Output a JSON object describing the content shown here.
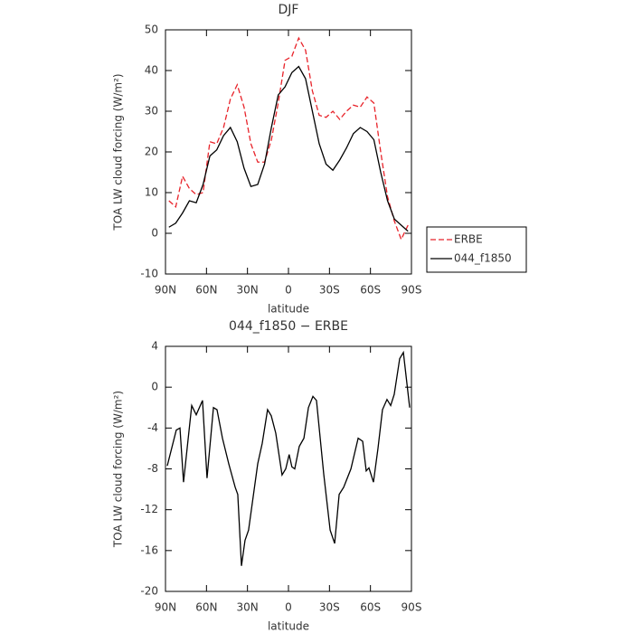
{
  "chart_data": [
    {
      "type": "line",
      "title": "DJF",
      "x_label": "latitude",
      "y_label": "TOA LW cloud forcing (W/m²)",
      "x": [
        87.5,
        82.5,
        77.5,
        72.5,
        67.5,
        62.5,
        57.5,
        52.5,
        47.5,
        42.5,
        37.5,
        32.5,
        27.5,
        22.5,
        17.5,
        12.5,
        7.5,
        2.5,
        -2.5,
        -7.5,
        -12.5,
        -17.5,
        -22.5,
        -27.5,
        -32.5,
        -37.5,
        -42.5,
        -47.5,
        -52.5,
        -57.5,
        -62.5,
        -67.5,
        -72.5,
        -77.5,
        -82.5,
        -87.5
      ],
      "series": [
        {
          "name": "ERBE",
          "color": "#e8232a",
          "dash": true,
          "values": [
            8,
            6.5,
            14,
            11,
            9.5,
            10,
            22.5,
            22,
            26,
            33,
            36.5,
            31,
            22,
            17.5,
            17.5,
            23,
            32,
            42.5,
            43.5,
            48,
            45,
            35,
            29,
            28.5,
            30,
            28,
            30,
            31.5,
            31,
            33.5,
            32,
            20,
            9,
            3,
            -1.5,
            2
          ]
        },
        {
          "name": "044_f1850",
          "color": "#000000",
          "dash": false,
          "values": [
            1.5,
            2.5,
            5,
            8,
            7.5,
            12,
            19,
            20.5,
            24,
            26,
            22.5,
            16,
            11.5,
            12,
            17,
            26,
            34,
            36,
            39.5,
            41,
            38,
            30,
            22,
            17,
            15.5,
            18,
            21,
            24.5,
            26,
            25,
            23,
            15,
            8,
            3.5,
            2,
            0.5
          ]
        }
      ],
      "xlim": [
        90,
        -90
      ],
      "xticks": [
        {
          "value": 90,
          "label": "90N"
        },
        {
          "value": 60,
          "label": "60N"
        },
        {
          "value": 30,
          "label": "30N"
        },
        0,
        {
          "value": -30,
          "label": "30S"
        },
        {
          "value": -60,
          "label": "60S"
        },
        {
          "value": -90,
          "label": "90S"
        }
      ],
      "ylim": [
        -10,
        50
      ],
      "yticks": [
        -10,
        0,
        10,
        20,
        30,
        40,
        50
      ],
      "legend": "right"
    },
    {
      "type": "line",
      "title": "044_f1850 − ERBE",
      "x_label": "latitude",
      "y_label": "TOA LW cloud forcing (W/m²)",
      "x": [
        88.7,
        82.1,
        79.4,
        76.8,
        70.8,
        67.5,
        62.9,
        59.6,
        54.9,
        52.3,
        48.3,
        43.7,
        39.0,
        37.1,
        34.4,
        31.8,
        29.2,
        22.5,
        19.2,
        15.3,
        12.6,
        9.3,
        4.7,
        2.0,
        -0.5,
        -2.5,
        -4.6,
        -7.9,
        -11.3,
        -14.6,
        -17.9,
        -20.5,
        -25.8,
        -30.5,
        -33.8,
        -37.1,
        -40.4,
        -45.7,
        -51.0,
        -54.3,
        -56.9,
        -58.9,
        -62.2,
        -65.5,
        -68.8,
        -72.1,
        -74.8,
        -77.4,
        -81.4,
        -84.1,
        -88.7
      ],
      "series": [
        {
          "color": "#000000",
          "dash": false,
          "values": [
            -7.7,
            -4.2,
            -4,
            -9.3,
            -1.8,
            -2.7,
            -1.3,
            -8.9,
            -2,
            -2.2,
            -5,
            -7.5,
            -9.8,
            -10.5,
            -17.5,
            -15,
            -14,
            -7.5,
            -5.5,
            -2.2,
            -2.8,
            -4.5,
            -8.6,
            -8,
            -6.6,
            -7.8,
            -8,
            -5.8,
            -5,
            -2,
            -0.9,
            -1.3,
            -8.5,
            -14,
            -15.3,
            -10.5,
            -9.8,
            -8,
            -5,
            -5.3,
            -8.2,
            -7.9,
            -9.3,
            -6,
            -2.2,
            -1.2,
            -1.8,
            -0.7,
            2.8,
            3.4,
            -2
          ]
        }
      ],
      "xlim": [
        90,
        -90
      ],
      "xticks": [
        {
          "value": 90,
          "label": "90N"
        },
        {
          "value": 60,
          "label": "60N"
        },
        {
          "value": 30,
          "label": "30N"
        },
        0,
        {
          "value": -30,
          "label": "30S"
        },
        {
          "value": -60,
          "label": "60S"
        },
        {
          "value": -90,
          "label": "90S"
        }
      ],
      "ylim": [
        -20,
        4
      ],
      "yticks": [
        -20,
        -16,
        -12,
        -8,
        -4,
        0,
        4
      ]
    }
  ]
}
